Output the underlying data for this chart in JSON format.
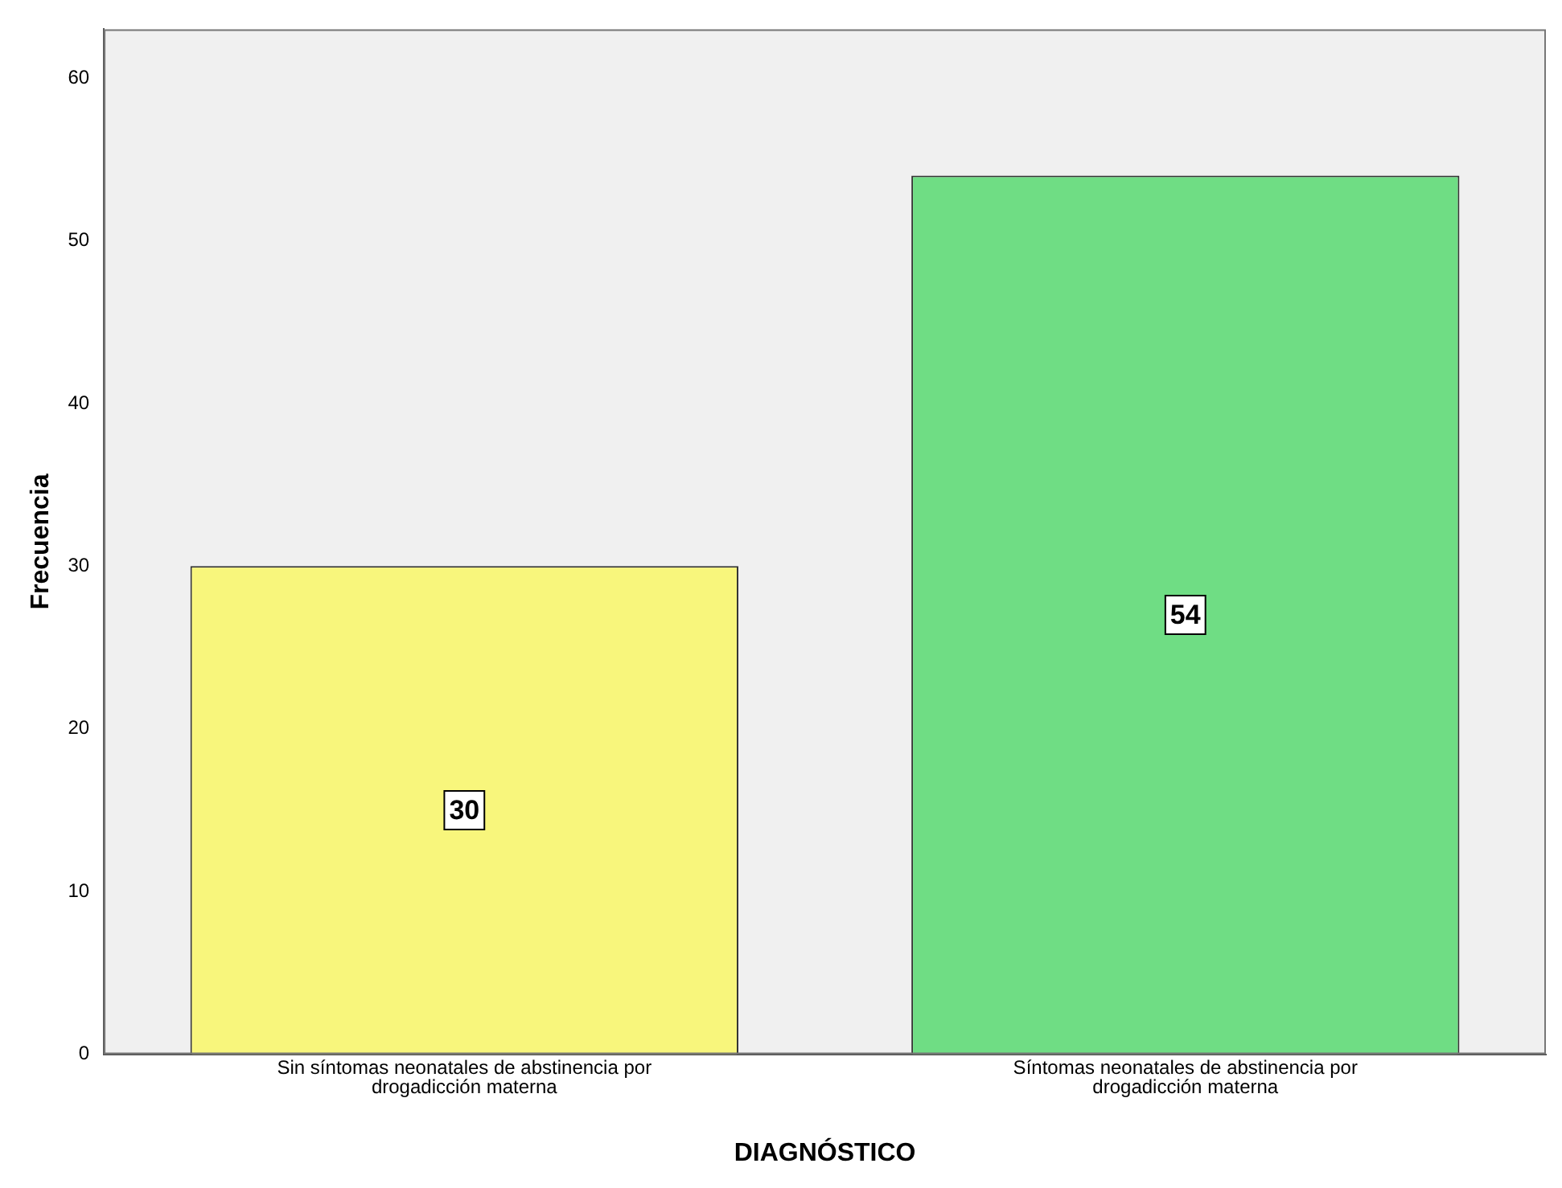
{
  "chart_data": {
    "type": "bar",
    "xlabel": "DIAGNÓSTICO",
    "ylabel": "Frecuencia",
    "categories": [
      "Sin síntomas neonatales de abstinencia por drogadicción materna",
      "Síntomas neonatales de abstinencia por drogadicción materna"
    ],
    "values": [
      30,
      54
    ],
    "colors": [
      "#f8f67c",
      "#6fdd84"
    ],
    "ylim": [
      0,
      63
    ],
    "yticks": [
      0,
      10,
      20,
      30,
      40,
      50,
      60
    ],
    "grid": false,
    "legend": false,
    "data_labels": true
  }
}
